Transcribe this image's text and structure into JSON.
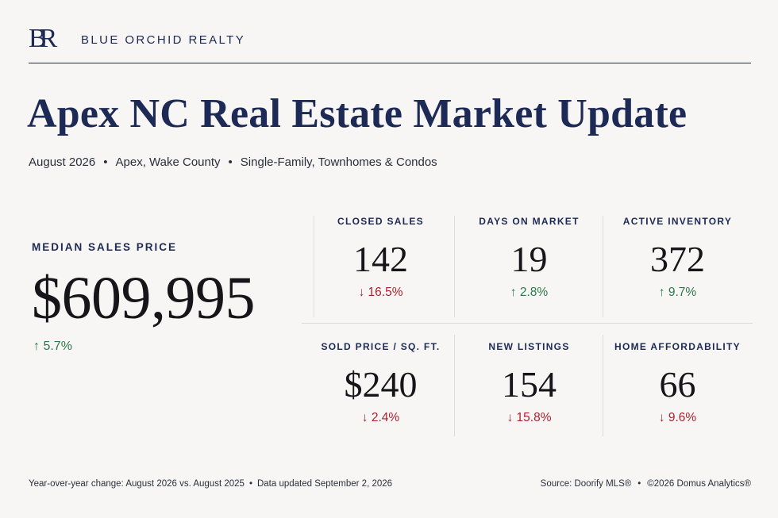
{
  "brand": {
    "monogram": "BR",
    "name": "BLUE ORCHID REALTY"
  },
  "title": "Apex NC Real Estate Market Update",
  "subtitle": {
    "period": "August 2026",
    "location": "Apex, Wake County",
    "property_types": "Single-Family, Townhomes & Condos",
    "separator": "•"
  },
  "median": {
    "label": "MEDIAN SALES PRICE",
    "value": "$609,995",
    "change": "↑ 5.7%",
    "direction": "up"
  },
  "metrics": [
    {
      "label": "CLOSED SALES",
      "value": "142",
      "change": "↓ 16.5%",
      "direction": "down"
    },
    {
      "label": "DAYS ON MARKET",
      "value": "19",
      "change": "↑ 2.8%",
      "direction": "up"
    },
    {
      "label": "ACTIVE INVENTORY",
      "value": "372",
      "change": "↑ 9.7%",
      "direction": "up"
    },
    {
      "label": "SOLD PRICE / SQ. FT.",
      "value": "$240",
      "change": "↓ 2.4%",
      "direction": "down"
    },
    {
      "label": "NEW LISTINGS",
      "value": "154",
      "change": "↓ 15.8%",
      "direction": "down"
    },
    {
      "label": "HOME AFFORDABILITY",
      "value": "66",
      "change": "↓ 9.6%",
      "direction": "down"
    }
  ],
  "footer": {
    "yoy_note": "Year-over-year change: August 2026 vs. August 2025",
    "updated": "Data updated September 2, 2026",
    "source": "Source: Doorify MLS®",
    "copyright": "©2026 Domus Analytics®",
    "separator": "•"
  },
  "colors": {
    "navy": "#1c2a55",
    "up": "#2a7a4a",
    "down": "#b0212f",
    "background": "#f7f6f4"
  }
}
